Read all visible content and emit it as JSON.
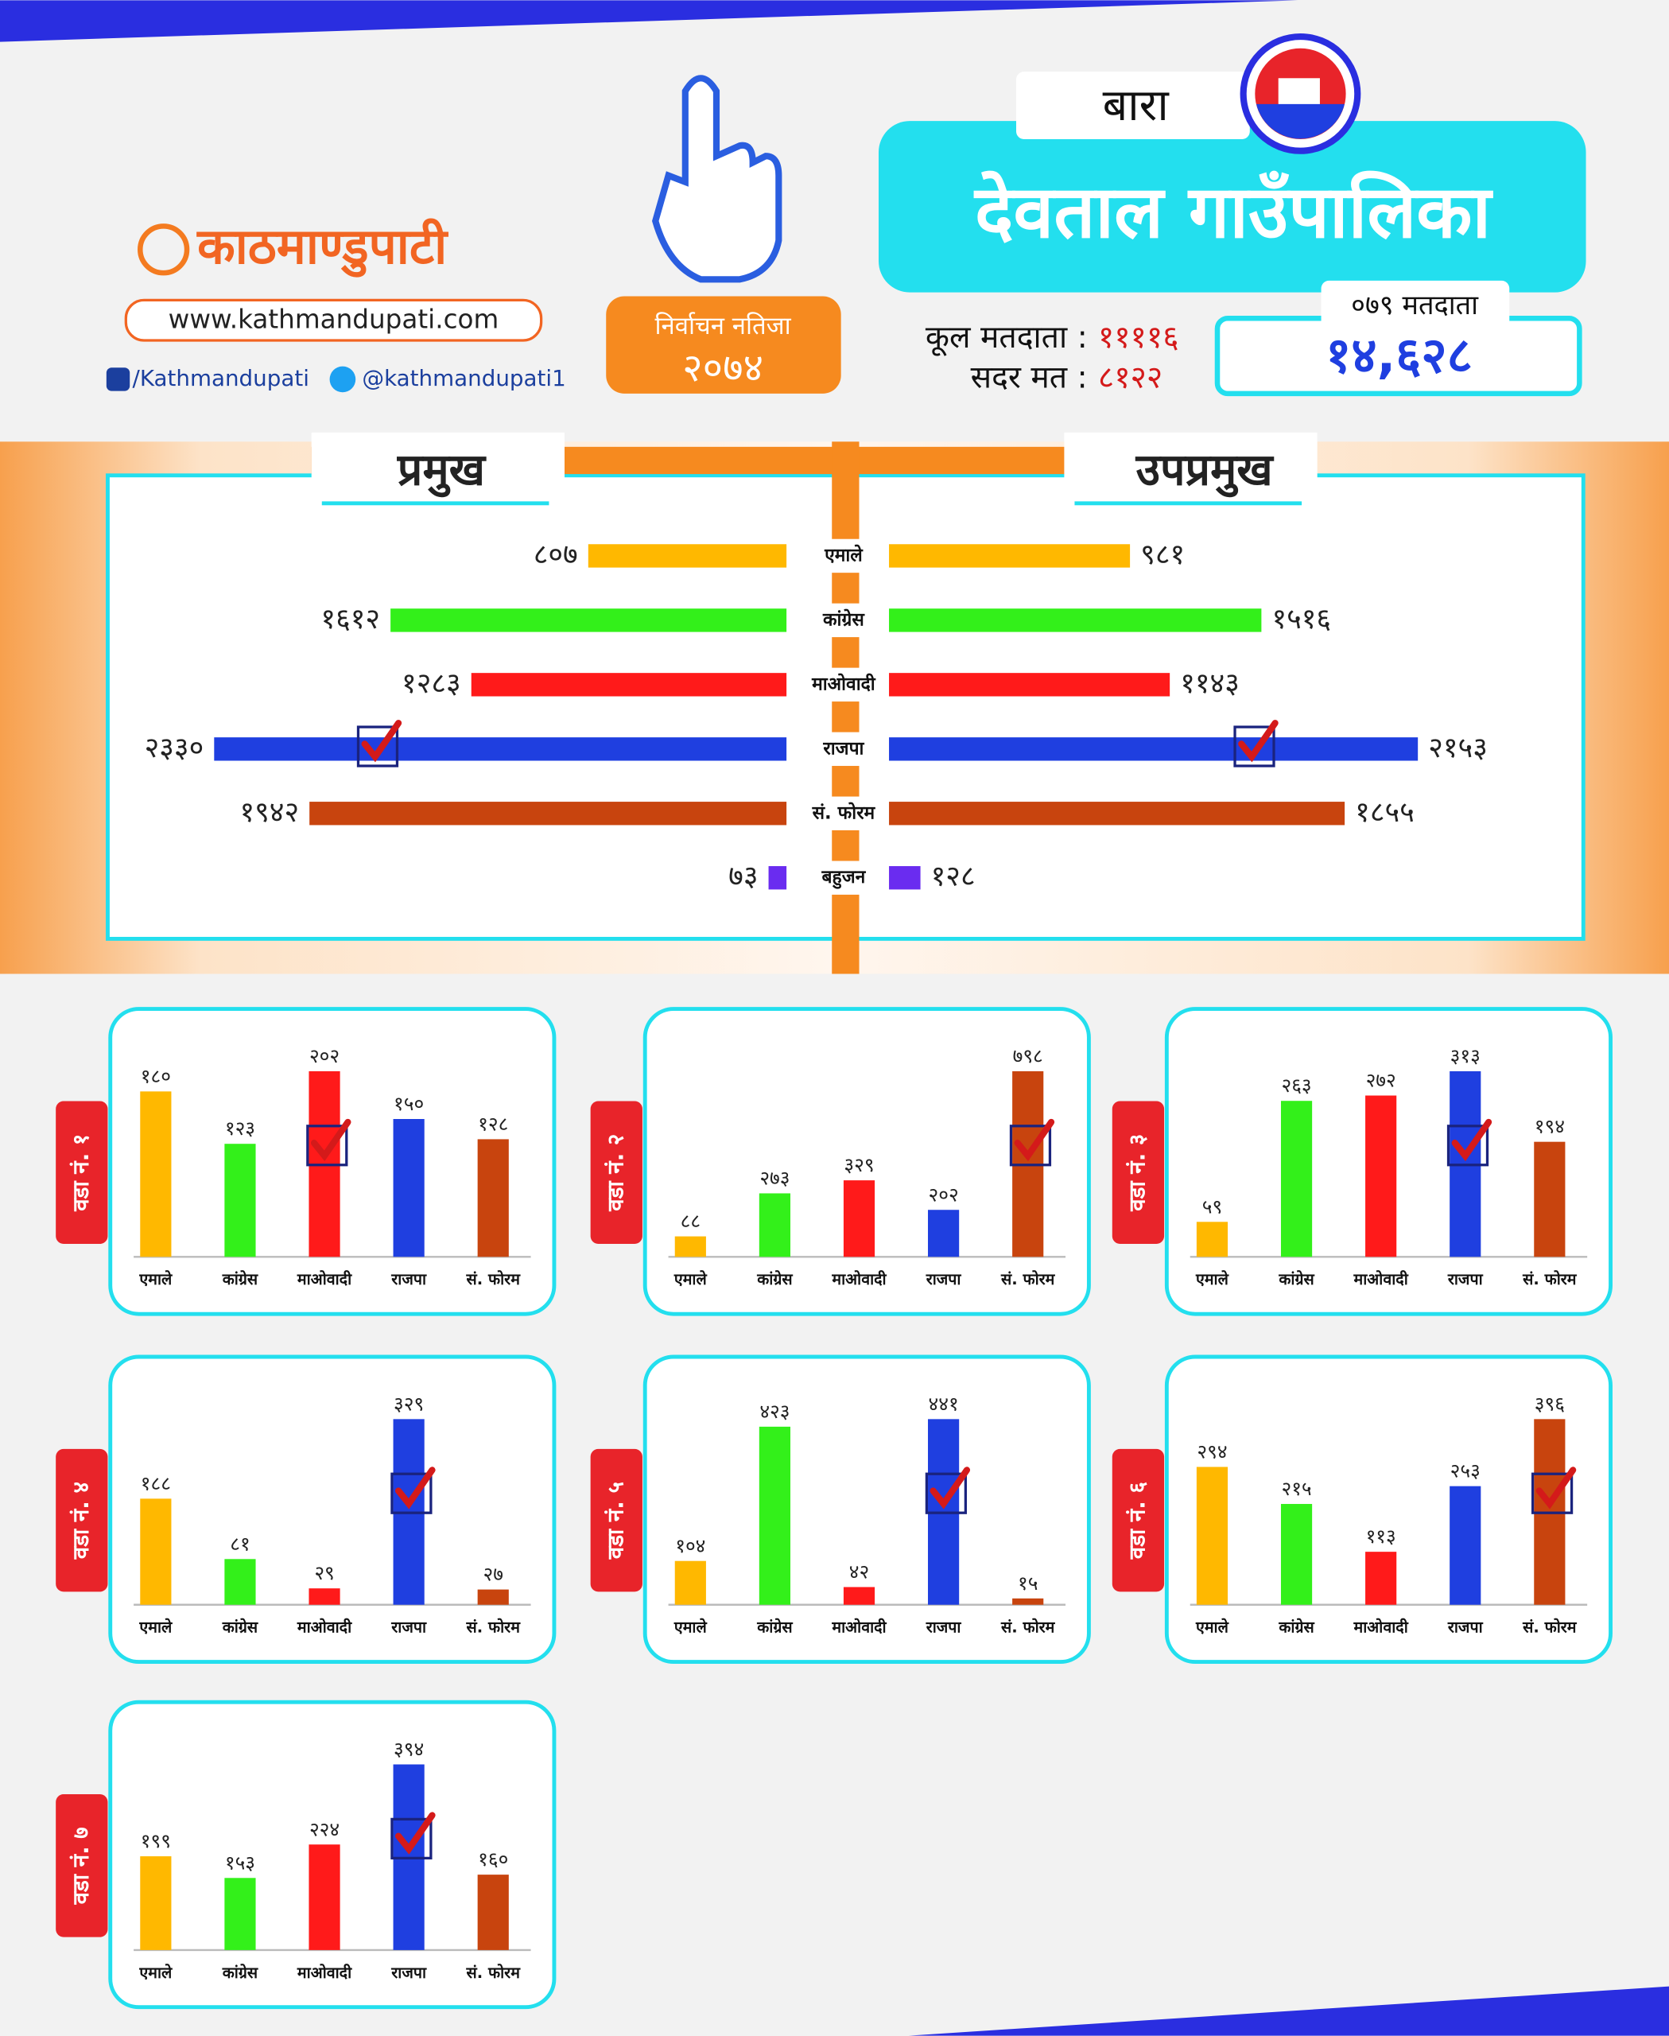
{
  "header": {
    "logo": "काठमाण्डुपाटी",
    "website": "www.kathmandupati.com",
    "facebook": "/Kathmandupati",
    "twitter": "@kathmandupati1",
    "badge_title": "निर्वाचन नतिजा",
    "badge_year": "२०७४",
    "district": "बारा",
    "municipality": "देवताल गाउँपालिका",
    "total_voters_label": "कूल मतदाता :",
    "total_voters": "११११६",
    "valid_votes_label": "सदर मत :",
    "valid_votes": "८१२२",
    "voters_079_label": "०७९ मतदाता",
    "voters_079": "१४,६२८"
  },
  "chart_data": [
    {
      "type": "butterfly",
      "categories": [
        "एमाले",
        "कांग्रेस",
        "माओवादी",
        "राजपा",
        "सं. फोरम",
        "बहुजन"
      ],
      "colors": [
        "#ffb800",
        "#33f01a",
        "#ff1a1a",
        "#1f3fe0",
        "#c8440e",
        "#6a2cf0"
      ],
      "series": [
        {
          "name": "प्रमुख",
          "values": [
            807,
            1612,
            1283,
            2330,
            1942,
            73
          ],
          "value_labels": [
            "८०७",
            "१६१२",
            "१२८३",
            "२३३०",
            "१९४२",
            "७३"
          ]
        },
        {
          "name": "उपप्रमुख",
          "values": [
            981,
            1516,
            1143,
            2153,
            1855,
            128
          ],
          "value_labels": [
            "९८१",
            "१५१६",
            "११४३",
            "२१५३",
            "१८५५",
            "१२८"
          ]
        }
      ]
    },
    {
      "type": "bar",
      "title": "वडा नं. १",
      "categories": [
        "एमाले",
        "कांग्रेस",
        "माओवादी",
        "राजपा",
        "सं. फोरम"
      ],
      "colors": [
        "#ffb800",
        "#33f01a",
        "#ff1a1a",
        "#1f3fe0",
        "#c8440e"
      ],
      "values": [
        180,
        123,
        202,
        150,
        128
      ],
      "value_labels": [
        "१८०",
        "१२३",
        "२०२",
        "१५०",
        "१२८"
      ]
    },
    {
      "type": "bar",
      "title": "वडा नं. २",
      "categories": [
        "एमाले",
        "कांग्रेस",
        "माओवादी",
        "राजपा",
        "सं. फोरम"
      ],
      "colors": [
        "#ffb800",
        "#33f01a",
        "#ff1a1a",
        "#1f3fe0",
        "#c8440e"
      ],
      "values": [
        88,
        273,
        329,
        202,
        798
      ],
      "value_labels": [
        "८८",
        "२७३",
        "३२९",
        "२०२",
        "७९८"
      ]
    },
    {
      "type": "bar",
      "title": "वडा नं. ३",
      "categories": [
        "एमाले",
        "कांग्रेस",
        "माओवादी",
        "राजपा",
        "सं. फोरम"
      ],
      "colors": [
        "#ffb800",
        "#33f01a",
        "#ff1a1a",
        "#1f3fe0",
        "#c8440e"
      ],
      "values": [
        59,
        263,
        272,
        313,
        194
      ],
      "value_labels": [
        "५९",
        "२६३",
        "२७२",
        "३१३",
        "१९४"
      ]
    },
    {
      "type": "bar",
      "title": "वडा नं. ४",
      "categories": [
        "एमाले",
        "कांग्रेस",
        "माओवादी",
        "राजपा",
        "सं. फोरम"
      ],
      "colors": [
        "#ffb800",
        "#33f01a",
        "#ff1a1a",
        "#1f3fe0",
        "#c8440e"
      ],
      "values": [
        188,
        81,
        29,
        329,
        27
      ],
      "value_labels": [
        "१८८",
        "८१",
        "२९",
        "३२९",
        "२७"
      ]
    },
    {
      "type": "bar",
      "title": "वडा नं. ५",
      "categories": [
        "एमाले",
        "कांग्रेस",
        "माओवादी",
        "राजपा",
        "सं. फोरम"
      ],
      "colors": [
        "#ffb800",
        "#33f01a",
        "#ff1a1a",
        "#1f3fe0",
        "#c8440e"
      ],
      "values": [
        104,
        423,
        42,
        441,
        15
      ],
      "value_labels": [
        "१०४",
        "४२३",
        "४२",
        "४४१",
        "१५"
      ]
    },
    {
      "type": "bar",
      "title": "वडा नं. ६",
      "categories": [
        "एमाले",
        "कांग्रेस",
        "माओवादी",
        "राजपा",
        "सं. फोरम"
      ],
      "colors": [
        "#ffb800",
        "#33f01a",
        "#ff1a1a",
        "#1f3fe0",
        "#c8440e"
      ],
      "values": [
        294,
        215,
        113,
        253,
        396
      ],
      "value_labels": [
        "२९४",
        "२१५",
        "११३",
        "२५३",
        "३९६"
      ]
    },
    {
      "type": "bar",
      "title": "वडा नं. ७",
      "categories": [
        "एमाले",
        "कांग्रेस",
        "माओवादी",
        "राजपा",
        "सं. फोरम"
      ],
      "colors": [
        "#ffb800",
        "#33f01a",
        "#ff1a1a",
        "#1f3fe0",
        "#c8440e"
      ],
      "values": [
        199,
        153,
        224,
        394,
        160
      ],
      "value_labels": [
        "१९९",
        "१५३",
        "२२४",
        "३९४",
        "१६०"
      ]
    }
  ]
}
